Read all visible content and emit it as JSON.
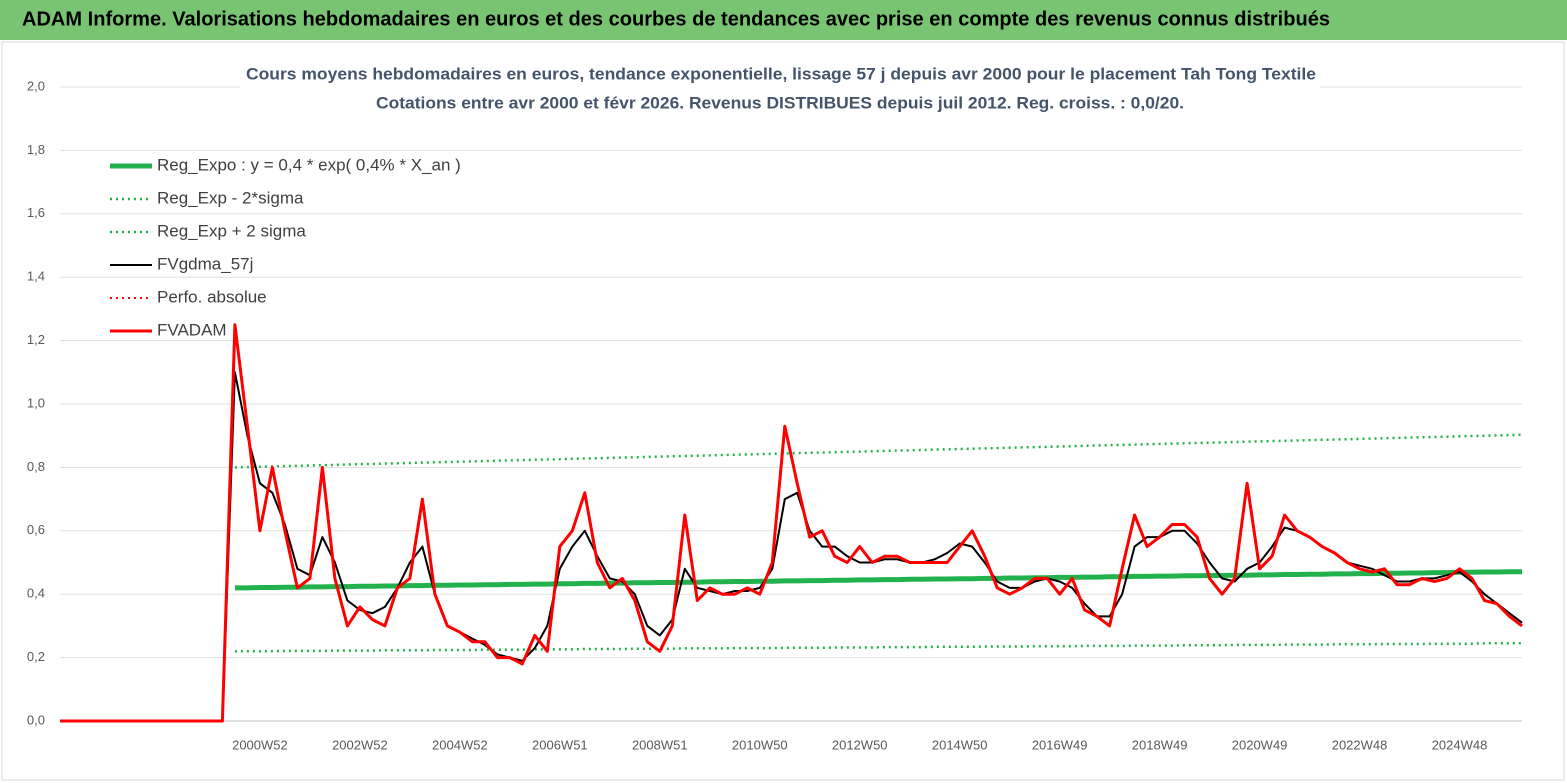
{
  "header": {
    "title": "ADAM Informe. Valorisations hebdomadaires en euros et des courbes de tendances avec prise en compte des revenus connus distribués"
  },
  "chart_data": {
    "type": "line",
    "title": "Cours moyens hebdomadaires en euros, tendance exponentielle, lissage 57 j depuis avr 2000 pour le placement Tah Tong Textile",
    "subtitle": "Cotations entre avr 2000 et févr 2026. Revenus DISTRIBUES depuis juil 2012. Reg. croiss. : 0,0/20.",
    "categories": [
      null,
      null,
      null,
      null,
      null,
      null,
      null,
      null,
      null,
      null,
      null,
      null,
      null,
      null,
      null,
      null,
      "2000W52",
      null,
      null,
      null,
      null,
      null,
      null,
      null,
      "2002W52",
      null,
      null,
      null,
      null,
      null,
      null,
      null,
      "2004W52",
      null,
      null,
      null,
      null,
      null,
      null,
      null,
      "2006W51",
      null,
      null,
      null,
      null,
      null,
      null,
      null,
      "2008W51",
      null,
      null,
      null,
      null,
      null,
      null,
      null,
      "2010W50",
      null,
      null,
      null,
      null,
      null,
      null,
      null,
      "2012W50",
      null,
      null,
      null,
      null,
      null,
      null,
      null,
      "2014W50",
      null,
      null,
      null,
      null,
      null,
      null,
      null,
      "2016W49",
      null,
      null,
      null,
      null,
      null,
      null,
      null,
      "2018W49",
      null,
      null,
      null,
      null,
      null,
      null,
      null,
      "2020W49",
      null,
      null,
      null,
      null,
      null,
      null,
      null,
      "2022W48",
      null,
      null,
      null,
      null,
      null,
      null,
      null,
      "2024W48",
      null,
      null,
      null,
      null,
      null
    ],
    "ylim": [
      0,
      2
    ],
    "yticks": [
      {
        "value": 0,
        "label": "0,0"
      },
      {
        "value": 0.2,
        "label": "0,2"
      },
      {
        "value": 0.4,
        "label": "0,4"
      },
      {
        "value": 0.6,
        "label": "0,6"
      },
      {
        "value": 0.8,
        "label": "0,8"
      },
      {
        "value": 1,
        "label": "1,0"
      },
      {
        "value": 1.2,
        "label": "1,2"
      },
      {
        "value": 1.4,
        "label": "1,4"
      },
      {
        "value": 1.6,
        "label": "1,6"
      },
      {
        "value": 1.8,
        "label": "1,8"
      },
      {
        "value": 2,
        "label": "2,0"
      }
    ],
    "grid": true,
    "legend": "upper left",
    "series": [
      {
        "name": "Reg_Expo : y = 0,4 * exp( 0,4% *  X_an )",
        "color": "#22b14c",
        "style": "solid",
        "values": [
          null,
          null,
          null,
          null,
          null,
          null,
          null,
          null,
          null,
          null,
          null,
          null,
          null,
          null,
          0.42,
          0.42,
          0.421,
          0.421,
          0.422,
          0.422,
          0.423,
          0.423,
          0.424,
          0.424,
          0.425,
          0.425,
          0.426,
          0.426,
          0.427,
          0.427,
          0.428,
          0.428,
          0.429,
          0.429,
          0.43,
          0.43,
          0.431,
          0.431,
          0.432,
          0.432,
          0.433,
          0.433,
          0.434,
          0.434,
          0.435,
          0.435,
          0.436,
          0.436,
          0.437,
          0.437,
          0.438,
          0.438,
          0.439,
          0.439,
          0.44,
          0.44,
          0.441,
          0.441,
          0.442,
          0.442,
          0.443,
          0.443,
          0.444,
          0.444,
          0.445,
          0.445,
          0.446,
          0.446,
          0.447,
          0.447,
          0.448,
          0.448,
          0.449,
          0.449,
          0.45,
          0.45,
          0.451,
          0.451,
          0.452,
          0.452,
          0.453,
          0.453,
          0.454,
          0.454,
          0.455,
          0.455,
          0.456,
          0.456,
          0.457,
          0.457,
          0.458,
          0.458,
          0.459,
          0.459,
          0.46,
          0.46,
          0.461,
          0.461,
          0.462,
          0.462,
          0.463,
          0.463,
          0.464,
          0.464,
          0.465,
          0.465,
          0.466,
          0.466,
          0.467,
          0.467,
          0.468,
          0.468,
          0.469,
          0.469,
          0.47,
          0.47,
          0.471,
          0.471
        ]
      },
      {
        "name": "Reg_Exp - 2*sigma",
        "color": "#22b14c",
        "style": "dotted",
        "values": [
          null,
          null,
          null,
          null,
          null,
          null,
          null,
          null,
          null,
          null,
          null,
          null,
          null,
          null,
          0.22,
          0.22,
          0.22,
          0.22,
          0.221,
          0.221,
          0.221,
          0.221,
          0.222,
          0.222,
          0.222,
          0.222,
          0.223,
          0.223,
          0.223,
          0.223,
          0.224,
          0.224,
          0.224,
          0.224,
          0.225,
          0.225,
          0.225,
          0.225,
          0.226,
          0.226,
          0.226,
          0.226,
          0.227,
          0.227,
          0.227,
          0.227,
          0.228,
          0.228,
          0.228,
          0.228,
          0.229,
          0.229,
          0.229,
          0.229,
          0.23,
          0.23,
          0.23,
          0.23,
          0.231,
          0.231,
          0.231,
          0.231,
          0.232,
          0.232,
          0.232,
          0.232,
          0.233,
          0.233,
          0.233,
          0.233,
          0.234,
          0.234,
          0.234,
          0.234,
          0.235,
          0.235,
          0.235,
          0.235,
          0.236,
          0.236,
          0.236,
          0.236,
          0.237,
          0.237,
          0.237,
          0.237,
          0.238,
          0.238,
          0.238,
          0.238,
          0.239,
          0.239,
          0.239,
          0.239,
          0.24,
          0.24,
          0.24,
          0.24,
          0.241,
          0.241,
          0.241,
          0.241,
          0.242,
          0.242,
          0.242,
          0.242,
          0.243,
          0.243,
          0.243,
          0.243,
          0.244,
          0.244,
          0.244,
          0.244,
          0.245,
          0.245,
          0.245,
          0.245
        ]
      },
      {
        "name": "Reg_Exp + 2 sigma",
        "color": "#22b14c",
        "style": "dotted",
        "values": [
          null,
          null,
          null,
          null,
          null,
          null,
          null,
          null,
          null,
          null,
          null,
          null,
          null,
          null,
          0.8,
          0.801,
          0.802,
          0.803,
          0.804,
          0.805,
          0.806,
          0.807,
          0.808,
          0.809,
          0.81,
          0.811,
          0.812,
          0.813,
          0.814,
          0.815,
          0.816,
          0.817,
          0.818,
          0.819,
          0.82,
          0.821,
          0.822,
          0.823,
          0.824,
          0.825,
          0.826,
          0.827,
          0.828,
          0.829,
          0.83,
          0.831,
          0.832,
          0.833,
          0.834,
          0.835,
          0.836,
          0.837,
          0.838,
          0.839,
          0.84,
          0.841,
          0.842,
          0.843,
          0.844,
          0.845,
          0.846,
          0.847,
          0.848,
          0.849,
          0.85,
          0.851,
          0.852,
          0.853,
          0.854,
          0.855,
          0.856,
          0.857,
          0.858,
          0.859,
          0.86,
          0.861,
          0.862,
          0.863,
          0.864,
          0.865,
          0.866,
          0.867,
          0.868,
          0.869,
          0.87,
          0.871,
          0.872,
          0.873,
          0.874,
          0.875,
          0.876,
          0.877,
          0.878,
          0.879,
          0.88,
          0.881,
          0.882,
          0.883,
          0.884,
          0.885,
          0.886,
          0.887,
          0.888,
          0.889,
          0.89,
          0.891,
          0.892,
          0.893,
          0.894,
          0.895,
          0.896,
          0.897,
          0.898,
          0.899,
          0.9,
          0.901,
          0.902,
          0.903
        ]
      },
      {
        "name": "FVgdma_57j",
        "color": "#000000",
        "style": "solid",
        "values": [
          0,
          0,
          0,
          0,
          0,
          0,
          0,
          0,
          0,
          0,
          0,
          0,
          0,
          0,
          1.1,
          0.9,
          0.75,
          0.72,
          0.62,
          0.48,
          0.46,
          0.58,
          0.5,
          0.38,
          0.35,
          0.34,
          0.36,
          0.42,
          0.5,
          0.55,
          0.4,
          0.3,
          0.28,
          0.26,
          0.24,
          0.21,
          0.2,
          0.19,
          0.23,
          0.3,
          0.48,
          0.55,
          0.6,
          0.52,
          0.45,
          0.44,
          0.4,
          0.3,
          0.27,
          0.32,
          0.48,
          0.42,
          0.41,
          0.4,
          0.41,
          0.41,
          0.42,
          0.48,
          0.7,
          0.72,
          0.6,
          0.55,
          0.55,
          0.52,
          0.5,
          0.5,
          0.51,
          0.51,
          0.5,
          0.5,
          0.51,
          0.53,
          0.56,
          0.55,
          0.5,
          0.44,
          0.42,
          0.42,
          0.44,
          0.45,
          0.44,
          0.42,
          0.37,
          0.33,
          0.33,
          0.4,
          0.55,
          0.58,
          0.58,
          0.6,
          0.6,
          0.56,
          0.5,
          0.45,
          0.44,
          0.48,
          0.5,
          0.55,
          0.61,
          0.6,
          0.58,
          0.55,
          0.53,
          0.5,
          0.49,
          0.48,
          0.46,
          0.44,
          0.44,
          0.45,
          0.45,
          0.46,
          0.47,
          0.44,
          0.4,
          0.37,
          0.34,
          0.31
        ]
      },
      {
        "name": "Perfo. absolue",
        "color": "#ff0000",
        "style": "dotted",
        "values": [
          0,
          0,
          0,
          0,
          0,
          0,
          0,
          0,
          0,
          0,
          0,
          0,
          0,
          0,
          1.25,
          0.93,
          0.6,
          0.8,
          0.6,
          0.42,
          0.45,
          0.8,
          0.45,
          0.3,
          0.36,
          0.32,
          0.3,
          0.42,
          0.45,
          0.7,
          0.4,
          0.3,
          0.28,
          0.25,
          0.25,
          0.2,
          0.2,
          0.18,
          0.27,
          0.22,
          0.55,
          0.6,
          0.72,
          0.5,
          0.42,
          0.45,
          0.38,
          0.25,
          0.22,
          0.3,
          0.65,
          0.38,
          0.42,
          0.4,
          0.4,
          0.42,
          0.4,
          0.5,
          0.93,
          0.75,
          0.58,
          0.6,
          0.52,
          0.5,
          0.55,
          0.5,
          0.52,
          0.52,
          0.5,
          0.5,
          0.5,
          0.5,
          0.55,
          0.6,
          0.52,
          0.42,
          0.4,
          0.42,
          0.45,
          0.45,
          0.4,
          0.45,
          0.35,
          0.33,
          0.3,
          0.48,
          0.65,
          0.55,
          0.58,
          0.62,
          0.62,
          0.58,
          0.45,
          0.4,
          0.45,
          0.75,
          0.48,
          0.52,
          0.65,
          0.6,
          0.58,
          0.55,
          0.53,
          0.5,
          0.48,
          0.47,
          0.48,
          0.43,
          0.43,
          0.45,
          0.44,
          0.45,
          0.48,
          0.45,
          0.38,
          0.37,
          0.33,
          0.3
        ]
      },
      {
        "name": "FVADAM",
        "color": "#ff0000",
        "style": "solid",
        "values": [
          0,
          0,
          0,
          0,
          0,
          0,
          0,
          0,
          0,
          0,
          0,
          0,
          0,
          0,
          1.25,
          0.93,
          0.6,
          0.8,
          0.6,
          0.42,
          0.45,
          0.8,
          0.45,
          0.3,
          0.36,
          0.32,
          0.3,
          0.42,
          0.45,
          0.7,
          0.4,
          0.3,
          0.28,
          0.25,
          0.25,
          0.2,
          0.2,
          0.18,
          0.27,
          0.22,
          0.55,
          0.6,
          0.72,
          0.5,
          0.42,
          0.45,
          0.38,
          0.25,
          0.22,
          0.3,
          0.65,
          0.38,
          0.42,
          0.4,
          0.4,
          0.42,
          0.4,
          0.5,
          0.93,
          0.75,
          0.58,
          0.6,
          0.52,
          0.5,
          0.55,
          0.5,
          0.52,
          0.52,
          0.5,
          0.5,
          0.5,
          0.5,
          0.55,
          0.6,
          0.52,
          0.42,
          0.4,
          0.42,
          0.45,
          0.45,
          0.4,
          0.45,
          0.35,
          0.33,
          0.3,
          0.48,
          0.65,
          0.55,
          0.58,
          0.62,
          0.62,
          0.58,
          0.45,
          0.4,
          0.45,
          0.75,
          0.48,
          0.52,
          0.65,
          0.6,
          0.58,
          0.55,
          0.53,
          0.5,
          0.48,
          0.47,
          0.48,
          0.43,
          0.43,
          0.45,
          0.44,
          0.45,
          0.48,
          0.45,
          0.38,
          0.37,
          0.33,
          0.3
        ]
      }
    ]
  }
}
